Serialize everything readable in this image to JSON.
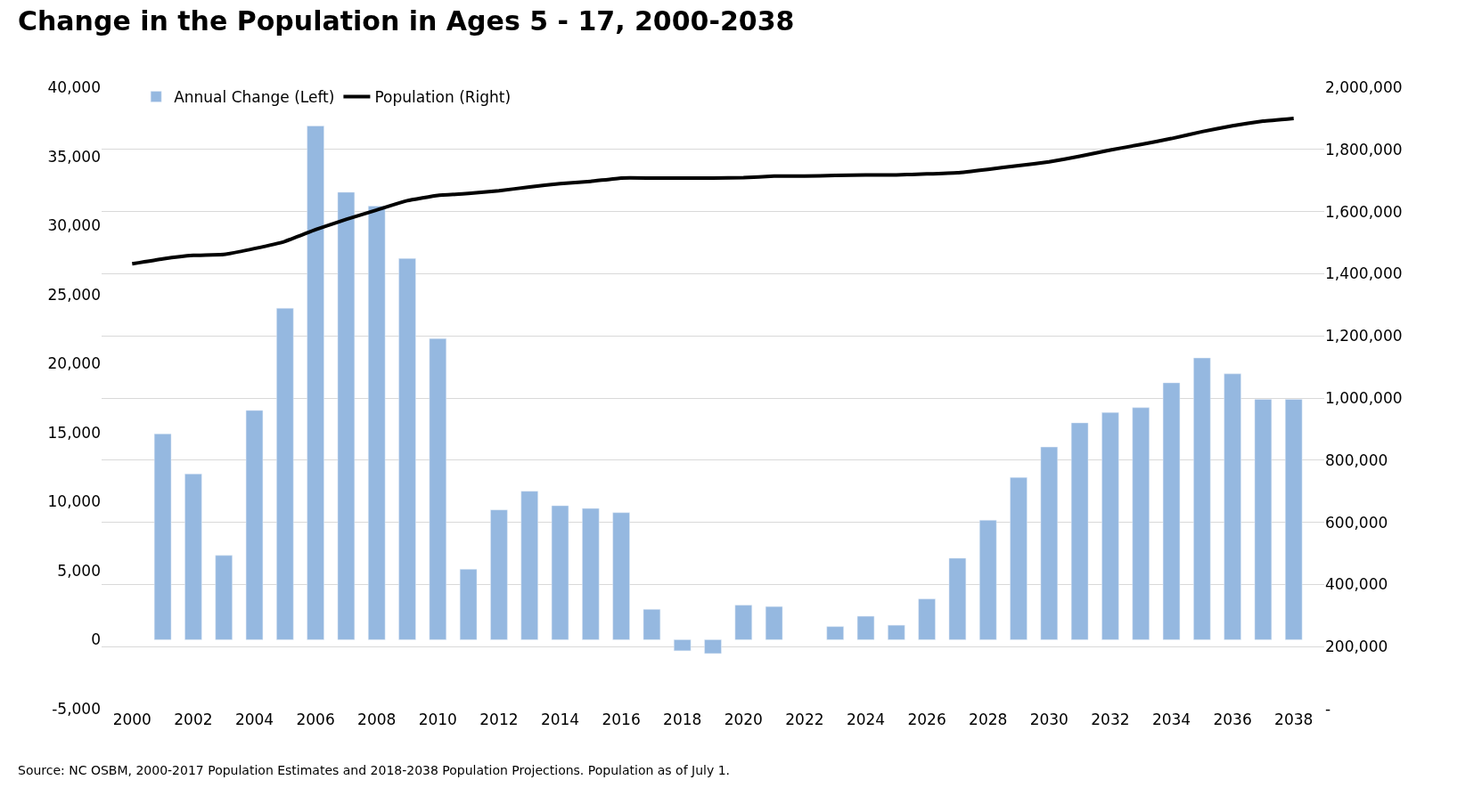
{
  "chart_data": {
    "type": "bar",
    "title": "Change in the Population in Ages 5 - 17, 2000-2038",
    "annotations": [
      "Source: NC OSBM, 2000-2017 Population Estimates and 2018-2038 Population Projections. Population as of July 1."
    ],
    "x": [
      2000,
      2001,
      2002,
      2003,
      2004,
      2005,
      2006,
      2007,
      2008,
      2009,
      2010,
      2011,
      2012,
      2013,
      2014,
      2015,
      2016,
      2017,
      2018,
      2019,
      2020,
      2021,
      2022,
      2023,
      2024,
      2025,
      2026,
      2027,
      2028,
      2029,
      2030,
      2031,
      2032,
      2033,
      2034,
      2035,
      2036,
      2037,
      2038
    ],
    "series": [
      {
        "name": "Annual Change (Left)",
        "color": "#95b8e0",
        "values": [
          null,
          14900,
          12000,
          6100,
          16600,
          24000,
          37200,
          32400,
          31400,
          27600,
          21800,
          5100,
          9400,
          10750,
          9700,
          9500,
          9200,
          2200,
          -800,
          -1000,
          2500,
          2400,
          null,
          950,
          1700,
          1050,
          2950,
          5900,
          8650,
          11750,
          13950,
          15700,
          16450,
          16800,
          18600,
          20400,
          19250,
          17400,
          17400
        ]
      },
      {
        "name": "Population (Right)",
        "type": "line",
        "axis": "y2",
        "color": "#000000",
        "values": [
          1432000,
          1448000,
          1459000,
          1462000,
          1481000,
          1504000,
          1542000,
          1575000,
          1605000,
          1635000,
          1652000,
          1658000,
          1667000,
          1679000,
          1690000,
          1697000,
          1708000,
          1708000,
          1708000,
          1708000,
          1709000,
          1714000,
          1714000,
          1716000,
          1718000,
          1718000,
          1721000,
          1725000,
          1736000,
          1748000,
          1760000,
          1778000,
          1798000,
          1816000,
          1835000,
          1857000,
          1876000,
          1891000,
          1900000
        ]
      }
    ],
    "xlim": [
      1999,
      2039
    ],
    "xticks": [
      2000,
      2002,
      2004,
      2006,
      2008,
      2010,
      2012,
      2014,
      2016,
      2018,
      2020,
      2022,
      2024,
      2026,
      2028,
      2030,
      2032,
      2034,
      2036,
      2038
    ],
    "ylim": [
      -5000,
      40000
    ],
    "yticks": [
      {
        "value": -5000,
        "label": "-5,000"
      },
      {
        "value": 0,
        "label": "0"
      },
      {
        "value": 5000,
        "label": "5,000"
      },
      {
        "value": 10000,
        "label": "10,000"
      },
      {
        "value": 15000,
        "label": "15,000"
      },
      {
        "value": 20000,
        "label": "20,000"
      },
      {
        "value": 25000,
        "label": "25,000"
      },
      {
        "value": 30000,
        "label": "30,000"
      },
      {
        "value": 35000,
        "label": "35,000"
      },
      {
        "value": 40000,
        "label": "40,000"
      }
    ],
    "y2lim": [
      0,
      2000000
    ],
    "y2ticks": [
      {
        "value": 0,
        "label": "-"
      },
      {
        "value": 200000,
        "label": "200,000"
      },
      {
        "value": 400000,
        "label": "400,000"
      },
      {
        "value": 600000,
        "label": "600,000"
      },
      {
        "value": 800000,
        "label": "800,000"
      },
      {
        "value": 1000000,
        "label": "1,000,000"
      },
      {
        "value": 1200000,
        "label": "1,200,000"
      },
      {
        "value": 1400000,
        "label": "1,400,000"
      },
      {
        "value": 1600000,
        "label": "1,600,000"
      },
      {
        "value": 1800000,
        "label": "1,800,000"
      },
      {
        "value": 2000000,
        "label": "2,000,000"
      }
    ],
    "grid": true,
    "legend": "top left",
    "line_style": "solid",
    "marker": "none"
  }
}
